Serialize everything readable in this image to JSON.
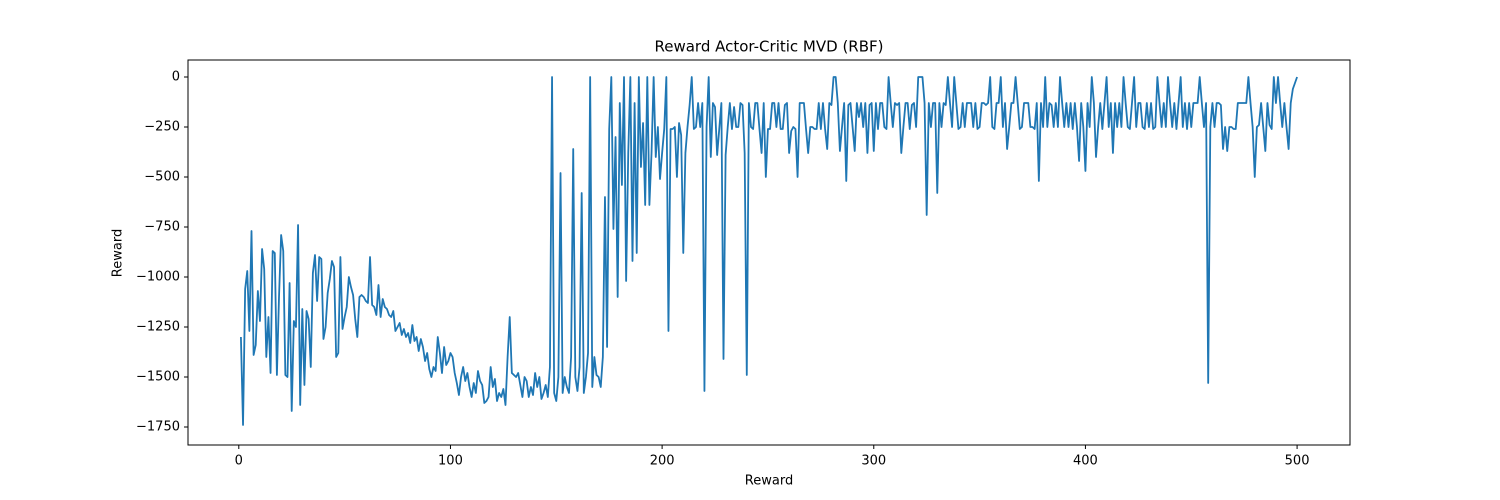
{
  "chart_data": {
    "type": "line",
    "title": "Reward Actor-Critic MVD (RBF)",
    "xlabel": "Reward",
    "ylabel": "Reward",
    "color": "#1f77b4",
    "xlim": [
      -24,
      525
    ],
    "ylim": [
      -1840,
      85
    ],
    "xticks": [
      0,
      100,
      200,
      300,
      400,
      500
    ],
    "yticks": [
      0,
      {
        "value": -250,
        "label": "−250"
      },
      {
        "value": -500,
        "label": "−500"
      },
      {
        "value": -750,
        "label": "−750"
      },
      {
        "value": -1000,
        "label": "−1000"
      },
      {
        "value": -1250,
        "label": "−1250"
      },
      {
        "value": -1500,
        "label": "−1500"
      },
      {
        "value": -1750,
        "label": "−1750"
      }
    ],
    "x": [
      1,
      2,
      3,
      4,
      5,
      6,
      7,
      8,
      9,
      10,
      11,
      12,
      13,
      14,
      15,
      16,
      17,
      18,
      19,
      20,
      21,
      22,
      23,
      24,
      25,
      26,
      27,
      28,
      29,
      30,
      31,
      32,
      33,
      34,
      35,
      36,
      37,
      38,
      39,
      40,
      41,
      42,
      43,
      44,
      45,
      46,
      47,
      48,
      49,
      50,
      51,
      52,
      53,
      54,
      55,
      56,
      57,
      58,
      59,
      60,
      61,
      62,
      63,
      64,
      65,
      66,
      67,
      68,
      69,
      70,
      71,
      72,
      73,
      74,
      75,
      76,
      77,
      78,
      79,
      80,
      81,
      82,
      83,
      84,
      85,
      86,
      87,
      88,
      89,
      90,
      91,
      92,
      93,
      94,
      95,
      96,
      97,
      98,
      99,
      100,
      101,
      102,
      103,
      104,
      105,
      106,
      107,
      108,
      109,
      110,
      111,
      112,
      113,
      114,
      115,
      116,
      117,
      118,
      119,
      120,
      121,
      122,
      123,
      124,
      125,
      126,
      127,
      128,
      129,
      130,
      131,
      132,
      133,
      134,
      135,
      136,
      137,
      138,
      139,
      140,
      141,
      142,
      143,
      144,
      145,
      146,
      147,
      148,
      149,
      150,
      151,
      152,
      153,
      154,
      155,
      156,
      157,
      158,
      159,
      160,
      161,
      162,
      163,
      164,
      165,
      166,
      167,
      168,
      169,
      170,
      171,
      172,
      173,
      174,
      175,
      176,
      177,
      178,
      179,
      180,
      181,
      182,
      183,
      184,
      185,
      186,
      187,
      188,
      189,
      190,
      191,
      192,
      193,
      194,
      195,
      196,
      197,
      198,
      199,
      200,
      201,
      202,
      203,
      204,
      205,
      206,
      207,
      208,
      209,
      210,
      211,
      212,
      213,
      214,
      215,
      216,
      217,
      218,
      219,
      220,
      221,
      222,
      223,
      224,
      225,
      226,
      227,
      228,
      229,
      230,
      231,
      232,
      233,
      234,
      235,
      236,
      237,
      238,
      239,
      240,
      241,
      242,
      243,
      244,
      245,
      246,
      247,
      248,
      249,
      250,
      251,
      252,
      253,
      254,
      255,
      256,
      257,
      258,
      259,
      260,
      261,
      262,
      263,
      264,
      265,
      266,
      267,
      268,
      269,
      270,
      271,
      272,
      273,
      274,
      275,
      276,
      277,
      278,
      279,
      280,
      281,
      282,
      283,
      284,
      285,
      286,
      287,
      288,
      289,
      290,
      291,
      292,
      293,
      294,
      295,
      296,
      297,
      298,
      299,
      300,
      301,
      302,
      303,
      304,
      305,
      306,
      307,
      308,
      309,
      310,
      311,
      312,
      313,
      314,
      315,
      316,
      317,
      318,
      319,
      320,
      321,
      322,
      323,
      324,
      325,
      326,
      327,
      328,
      329,
      330,
      331,
      332,
      333,
      334,
      335,
      336,
      337,
      338,
      339,
      340,
      341,
      342,
      343,
      344,
      345,
      346,
      347,
      348,
      349,
      350,
      351,
      352,
      353,
      354,
      355,
      356,
      357,
      358,
      359,
      360,
      361,
      362,
      363,
      364,
      365,
      366,
      367,
      368,
      369,
      370,
      371,
      372,
      373,
      374,
      375,
      376,
      377,
      378,
      379,
      380,
      381,
      382,
      383,
      384,
      385,
      386,
      387,
      388,
      389,
      390,
      391,
      392,
      393,
      394,
      395,
      396,
      397,
      398,
      399,
      400,
      401,
      402,
      403,
      404,
      405,
      406,
      407,
      408,
      409,
      410,
      411,
      412,
      413,
      414,
      415,
      416,
      417,
      418,
      419,
      420,
      421,
      422,
      423,
      424,
      425,
      426,
      427,
      428,
      429,
      430,
      431,
      432,
      433,
      434,
      435,
      436,
      437,
      438,
      439,
      440,
      441,
      442,
      443,
      444,
      445,
      446,
      447,
      448,
      449,
      450,
      451,
      452,
      453,
      454,
      455,
      456,
      457,
      458,
      459,
      460,
      461,
      462,
      463,
      464,
      465,
      466,
      467,
      468,
      469,
      470,
      471,
      472,
      473,
      474,
      475,
      476,
      477,
      478,
      479,
      480,
      481,
      482,
      483,
      484,
      485,
      486,
      487,
      488,
      489,
      490,
      491,
      492,
      493,
      494,
      495,
      496,
      497,
      498,
      499,
      500
    ],
    "values": [
      -1300,
      -1740,
      -1060,
      -970,
      -1270,
      -770,
      -1390,
      -1340,
      -1070,
      -1220,
      -860,
      -960,
      -1400,
      -1200,
      -1480,
      -870,
      -880,
      -1490,
      -1100,
      -790,
      -870,
      -1490,
      -1500,
      -1030,
      -1670,
      -1220,
      -1250,
      -740,
      -1640,
      -1160,
      -1540,
      -1170,
      -1210,
      -1450,
      -980,
      -890,
      -1120,
      -900,
      -910,
      -1310,
      -1250,
      -1080,
      -1010,
      -920,
      -950,
      -1400,
      -1380,
      -900,
      -1260,
      -1200,
      -1150,
      -1000,
      -1050,
      -1090,
      -1210,
      -1300,
      -1100,
      -1090,
      -1100,
      -1120,
      -1130,
      -900,
      -1140,
      -1150,
      -1190,
      -1040,
      -1200,
      -1110,
      -1150,
      -1160,
      -1190,
      -1200,
      -1170,
      -1270,
      -1250,
      -1230,
      -1290,
      -1260,
      -1300,
      -1280,
      -1330,
      -1240,
      -1320,
      -1300,
      -1370,
      -1310,
      -1350,
      -1420,
      -1380,
      -1460,
      -1500,
      -1450,
      -1470,
      -1300,
      -1380,
      -1480,
      -1350,
      -1440,
      -1420,
      -1380,
      -1400,
      -1480,
      -1530,
      -1590,
      -1500,
      -1450,
      -1520,
      -1480,
      -1550,
      -1600,
      -1530,
      -1580,
      -1470,
      -1520,
      -1540,
      -1630,
      -1620,
      -1600,
      -1450,
      -1550,
      -1510,
      -1620,
      -1580,
      -1600,
      -1560,
      -1640,
      -1400,
      -1200,
      -1480,
      -1490,
      -1500,
      -1480,
      -1540,
      -1600,
      -1500,
      -1520,
      -1600,
      -1550,
      -1590,
      -1480,
      -1550,
      -1500,
      -1610,
      -1580,
      -1540,
      -1600,
      -1450,
      0,
      -1580,
      -1620,
      -1500,
      -480,
      -1580,
      -1500,
      -1550,
      -1580,
      -1400,
      -360,
      -1500,
      -1570,
      -1450,
      -580,
      -1580,
      -1500,
      -1380,
      0,
      -1550,
      -1400,
      -1490,
      -1500,
      -1550,
      -1400,
      -600,
      -1350,
      -260,
      0,
      -760,
      -300,
      -1100,
      -130,
      -540,
      0,
      -1020,
      -380,
      0,
      -920,
      -130,
      -880,
      0,
      -450,
      -230,
      -640,
      0,
      -640,
      -380,
      0,
      -400,
      -250,
      -510,
      -380,
      -260,
      0,
      -1270,
      -260,
      -260,
      -250,
      -500,
      -230,
      -290,
      -880,
      -380,
      -250,
      -140,
      0,
      -260,
      -250,
      -130,
      -250,
      -130,
      -1570,
      -250,
      0,
      -400,
      -130,
      -150,
      -390,
      -260,
      -130,
      -1410,
      -390,
      -250,
      -130,
      -260,
      -150,
      -250,
      -250,
      -130,
      -140,
      -380,
      -1490,
      -130,
      -250,
      -260,
      -130,
      -130,
      -260,
      -380,
      -130,
      -500,
      -260,
      -260,
      -130,
      -130,
      -250,
      -130,
      -260,
      -260,
      -140,
      -130,
      -380,
      -270,
      -250,
      -260,
      -500,
      -130,
      -130,
      -130,
      -260,
      -380,
      -250,
      -250,
      -260,
      -260,
      -130,
      -260,
      -130,
      -260,
      -360,
      -130,
      -140,
      0,
      0,
      -130,
      -370,
      -250,
      -130,
      -520,
      -140,
      -130,
      -250,
      -370,
      -130,
      -200,
      -130,
      -250,
      -130,
      -380,
      -140,
      -130,
      -370,
      -130,
      -260,
      -130,
      -130,
      -250,
      -260,
      0,
      -130,
      -250,
      -130,
      -140,
      -130,
      -380,
      -250,
      -130,
      -130,
      -260,
      -140,
      -130,
      -250,
      0,
      0,
      0,
      -130,
      -690,
      -130,
      -250,
      -130,
      -130,
      -580,
      -130,
      -250,
      -130,
      -140,
      0,
      -130,
      -250,
      0,
      -130,
      -260,
      -250,
      -130,
      -250,
      -130,
      -130,
      -130,
      -250,
      -130,
      -260,
      -250,
      -130,
      -130,
      -140,
      -130,
      0,
      -250,
      -260,
      -130,
      -130,
      0,
      -250,
      -130,
      -360,
      -250,
      -130,
      -130,
      0,
      -130,
      -260,
      -250,
      -130,
      -130,
      -130,
      -250,
      -250,
      -260,
      -130,
      -520,
      -130,
      -250,
      0,
      -250,
      -130,
      -140,
      -250,
      -130,
      -250,
      0,
      -130,
      -250,
      -130,
      -250,
      -130,
      -260,
      -130,
      -250,
      -420,
      -130,
      -250,
      -470,
      -130,
      -250,
      0,
      -130,
      -400,
      -250,
      -130,
      -260,
      -130,
      0,
      -250,
      -130,
      -380,
      -130,
      -250,
      -130,
      -250,
      0,
      -130,
      -250,
      -260,
      -130,
      0,
      -250,
      -130,
      -130,
      -250,
      -260,
      -130,
      -250,
      -130,
      -260,
      -250,
      0,
      -130,
      -250,
      -130,
      -250,
      0,
      -130,
      -250,
      -130,
      -260,
      -130,
      0,
      -250,
      -130,
      -260,
      -130,
      -250,
      -130,
      -130,
      -130,
      0,
      -130,
      -250,
      -130,
      -1530,
      -250,
      -130,
      -250,
      -130,
      -130,
      -140,
      -360,
      -250,
      -370,
      -250,
      -250,
      -260,
      -260,
      -130,
      -130,
      -130,
      -130,
      -130,
      0,
      -130,
      -250,
      -500,
      -250,
      -240,
      -130,
      -250,
      -370,
      -130,
      -240,
      -260,
      0,
      -130,
      0,
      -130,
      -250,
      -130,
      -250,
      -360,
      -130,
      -60,
      -30,
      0
    ]
  }
}
